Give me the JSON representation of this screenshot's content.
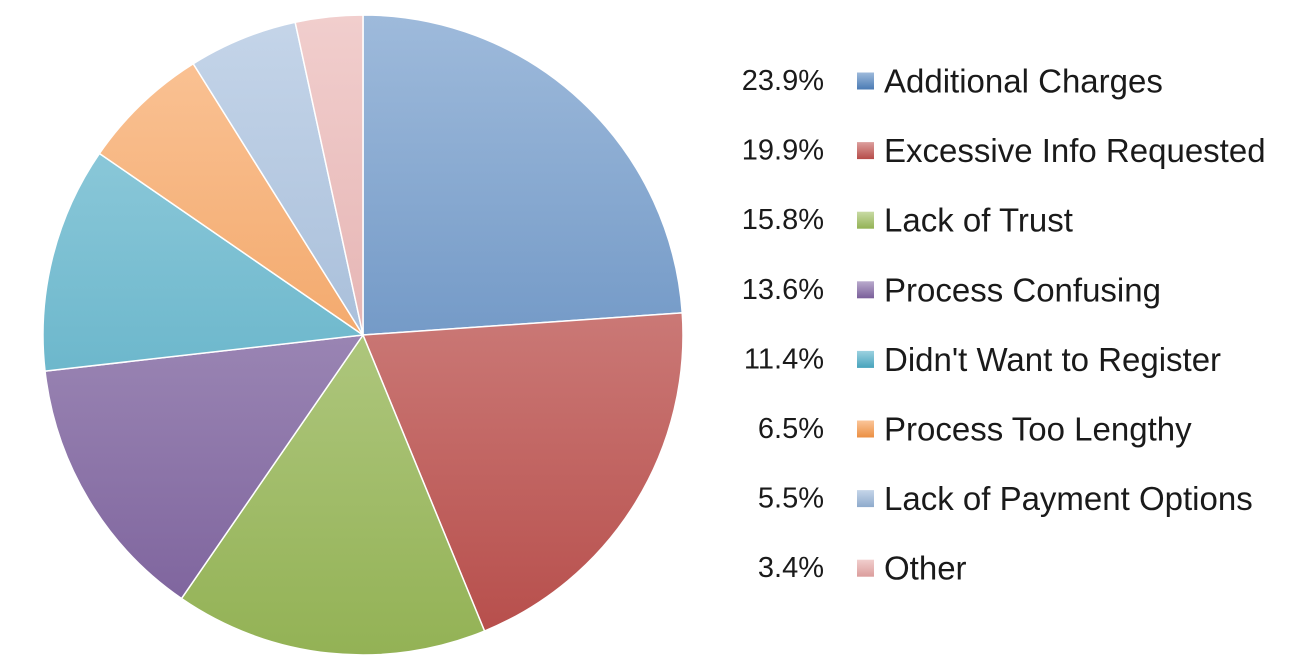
{
  "chart_data": {
    "type": "pie",
    "title": "",
    "start_angle_deg": 90,
    "direction": "clockwise",
    "legend_position": "right",
    "slices": [
      {
        "label": "Additional Charges",
        "value": 23.9,
        "value_label": "23.9%",
        "color": "#4F81BD"
      },
      {
        "label": "Excessive Info Requested",
        "value": 19.9,
        "value_label": "19.9%",
        "color": "#C0504D"
      },
      {
        "label": "Lack of Trust",
        "value": 15.8,
        "value_label": "15.8%",
        "color": "#9BBB59"
      },
      {
        "label": "Process Confusing",
        "value": 13.6,
        "value_label": "13.6%",
        "color": "#8064A2"
      },
      {
        "label": "Didn't Want to Register",
        "value": 11.4,
        "value_label": "11.4%",
        "color": "#4BACC6"
      },
      {
        "label": "Process Too Lengthy",
        "value": 6.5,
        "value_label": "6.5%",
        "color": "#F79646"
      },
      {
        "label": "Lack of Payment Options",
        "value": 5.5,
        "value_label": "5.5%",
        "color": "#95B3D7"
      },
      {
        "label": "Other",
        "value": 3.4,
        "value_label": "3.4%",
        "color": "#E6A5A4"
      }
    ]
  }
}
